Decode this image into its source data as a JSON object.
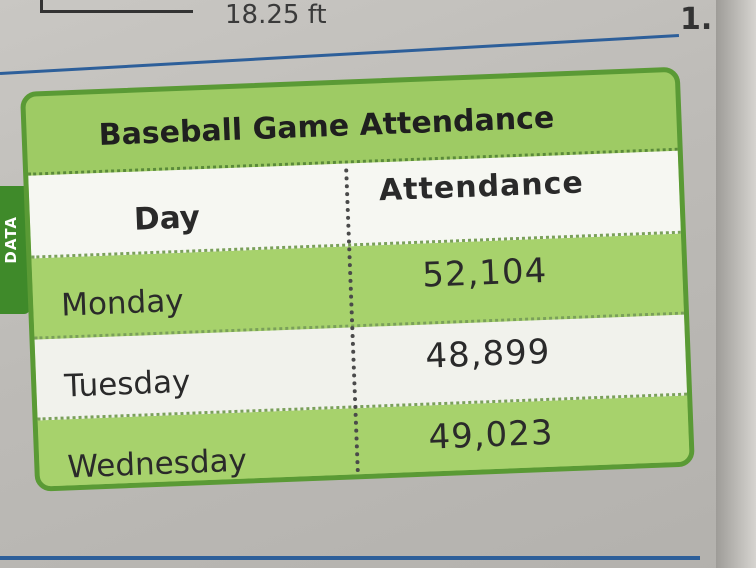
{
  "page": {
    "top_fragment": "18.25 ft",
    "problem_number": "1."
  },
  "side_tab": {
    "label": "DATA"
  },
  "table": {
    "title": "Baseball Game Attendance",
    "headers": [
      "Day",
      "Attendance"
    ],
    "rows": [
      [
        "Monday",
        "52,104"
      ],
      [
        "Tuesday",
        "48,899"
      ],
      [
        "Wednesday",
        "49,023"
      ]
    ]
  },
  "colors": {
    "card_green": "#9ecb64",
    "border_green": "#5a9a35",
    "tab_green": "#3f8a2a",
    "rule_blue": "#2d5f9a"
  }
}
